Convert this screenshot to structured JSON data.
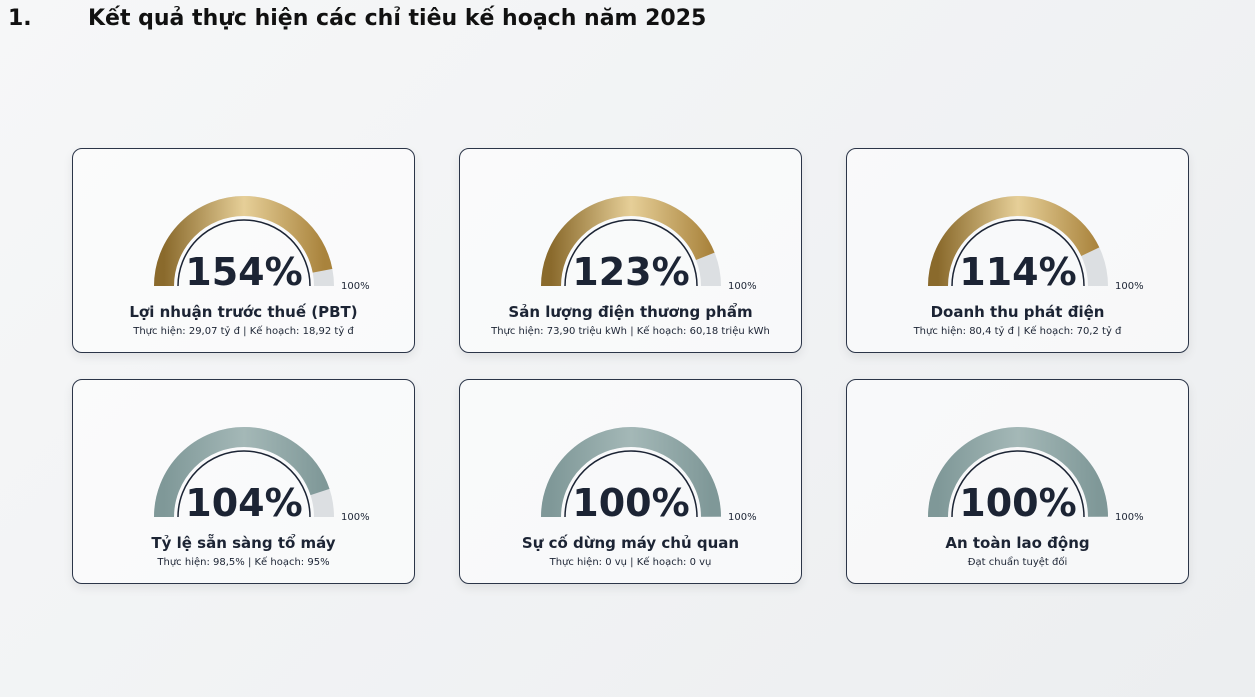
{
  "header": {
    "number": "1.",
    "title": "Kết quả thực hiện các chỉ tiêu kế hoạch năm 2025"
  },
  "cards": [
    {
      "value": "154%",
      "target": "100%",
      "name": "Lợi nhuận trước thuế (PBT)",
      "detail": "Thực hiện: 29,07 tỷ đ | Kế hoạch: 18,92 tỷ đ"
    },
    {
      "value": "123%",
      "target": "100%",
      "name": "Sản lượng điện thương phẩm",
      "detail": "Thực hiện: 73,90 triệu kWh | Kế hoạch: 60,18 triệu kWh"
    },
    {
      "value": "114%",
      "target": "100%",
      "name": "Doanh thu phát điện",
      "detail": "Thực hiện: 80,4 tỷ đ | Kế hoạch: 70,2 tỷ đ"
    },
    {
      "value": "104%",
      "target": "100%",
      "name": "Tỷ lệ sẵn sàng tổ máy",
      "detail": "Thực hiện: 98,5% | Kế hoạch: 95%"
    },
    {
      "value": "100%",
      "target": "100%",
      "name": "Sự cố dừng máy chủ quan",
      "detail": "Thực hiện: 0 vụ | Kế hoạch: 0 vụ"
    },
    {
      "value": "100%",
      "target": "100%",
      "name": "An toàn lao động",
      "detail": "Đạt chuẩn tuyệt đối"
    }
  ]
}
